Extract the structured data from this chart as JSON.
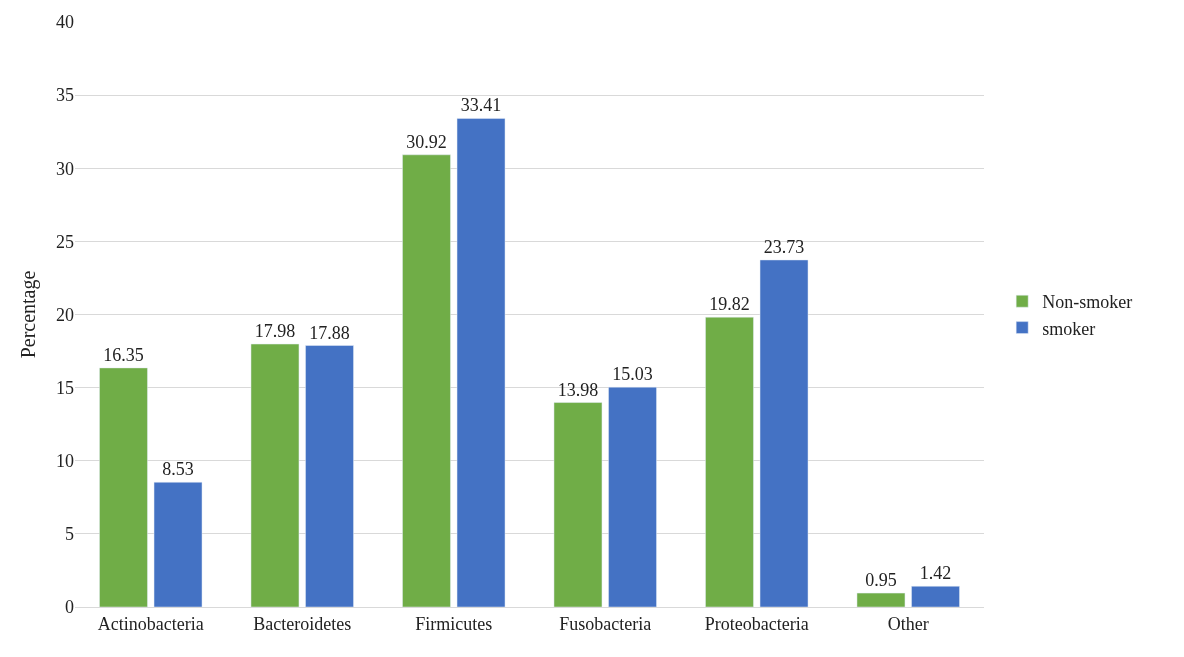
{
  "chart_data": {
    "type": "bar",
    "ylabel": "Percentage",
    "categories": [
      "Actinobacteria",
      "Bacteroidetes",
      "Firmicutes",
      "Fusobacteria",
      "Proteobacteria",
      "Other"
    ],
    "series": [
      {
        "name": "Non-smoker",
        "color": "#70ad47",
        "values": [
          16.35,
          17.98,
          30.92,
          13.98,
          19.82,
          0.95
        ]
      },
      {
        "name": "smoker",
        "color": "#4472c4",
        "values": [
          8.53,
          17.88,
          33.41,
          15.03,
          23.73,
          1.42
        ]
      }
    ],
    "ylim": [
      0,
      40
    ],
    "yticks": [
      0,
      5,
      10,
      15,
      20,
      25,
      30,
      35,
      40
    ],
    "grid": "y",
    "legend": "right",
    "data_labels": true
  }
}
